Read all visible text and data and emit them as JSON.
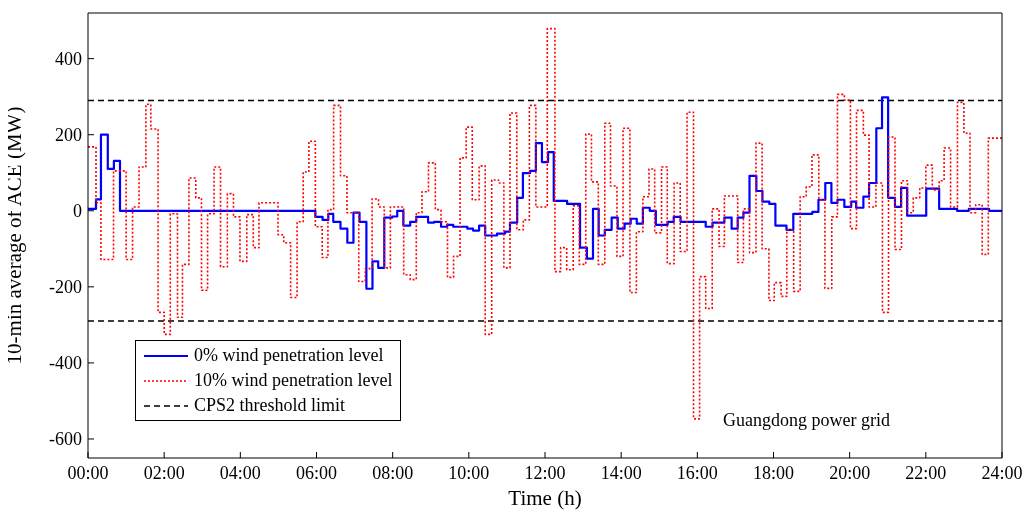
{
  "chart_data": {
    "type": "step",
    "xlabel": "Time (h)",
    "ylabel": "10-min average of ACE (MW)",
    "xlim": [
      0,
      24
    ],
    "xticks": [
      {
        "value": 0,
        "label": "00:00"
      },
      {
        "value": 2,
        "label": "02:00"
      },
      {
        "value": 4,
        "label": "04:00"
      },
      {
        "value": 6,
        "label": "06:00"
      },
      {
        "value": 8,
        "label": "08:00"
      },
      {
        "value": 10,
        "label": "10:00"
      },
      {
        "value": 12,
        "label": "12:00"
      },
      {
        "value": 14,
        "label": "14:00"
      },
      {
        "value": 16,
        "label": "16:00"
      },
      {
        "value": 18,
        "label": "18:00"
      },
      {
        "value": 20,
        "label": "20:00"
      },
      {
        "value": 22,
        "label": "22:00"
      },
      {
        "value": 24,
        "label": "24:00"
      }
    ],
    "ylim": [
      -650,
      520
    ],
    "yticks": [
      -600,
      -400,
      -200,
      0,
      200,
      400
    ],
    "grid": false,
    "legend": "bottom left",
    "marker": "none",
    "series": [
      {
        "name": "0% wind penetration level",
        "color": "#0000ff",
        "line_style": "solid",
        "x": [
          0,
          0.21,
          0.34,
          0.52,
          0.68,
          0.84,
          5.97,
          6.16,
          6.31,
          6.44,
          6.63,
          6.81,
          6.97,
          7.13,
          7.31,
          7.47,
          7.62,
          7.78,
          7.99,
          8.12,
          8.28,
          8.46,
          8.62,
          8.93,
          9.09,
          9.27,
          9.43,
          9.59,
          9.96,
          10.11,
          10.27,
          10.43,
          10.74,
          10.95,
          11.08,
          11.27,
          11.42,
          11.61,
          11.76,
          11.92,
          12.08,
          12.23,
          12.58,
          12.92,
          13.1,
          13.26,
          13.41,
          13.57,
          13.75,
          13.91,
          14.09,
          14.25,
          14.41,
          14.57,
          14.75,
          14.91,
          15.22,
          15.38,
          15.56,
          16.22,
          16.4,
          16.71,
          16.9,
          17.06,
          17.21,
          17.37,
          17.55,
          17.71,
          17.89,
          18.05,
          18.34,
          18.52,
          19.02,
          19.18,
          19.36,
          19.52,
          19.68,
          19.86,
          20.04,
          20.17,
          20.36,
          20.51,
          20.7,
          20.85,
          21.01,
          21.19,
          21.35,
          21.51,
          22.01,
          22.35,
          22.82,
          23.13,
          23.66,
          24
        ],
        "values": [
          5,
          30,
          200,
          110,
          131,
          0,
          -16,
          -24,
          -8,
          -29,
          -47,
          -84,
          -5,
          -29,
          -205,
          -133,
          -150,
          -18,
          -15,
          0,
          -39,
          -29,
          -16,
          -31,
          -29,
          -42,
          -37,
          -42,
          -47,
          -52,
          -39,
          -65,
          -60,
          -55,
          -31,
          34,
          99,
          105,
          178,
          128,
          154,
          26,
          18,
          -97,
          -126,
          5,
          -65,
          -50,
          -18,
          -47,
          -34,
          -21,
          -34,
          8,
          0,
          -37,
          -29,
          -16,
          -29,
          -42,
          -31,
          -18,
          -47,
          -18,
          -5,
          92,
          52,
          24,
          18,
          -39,
          -50,
          -8,
          -3,
          29,
          73,
          21,
          29,
          10,
          24,
          8,
          37,
          73,
          217,
          298,
          34,
          10,
          60,
          -13,
          58,
          5,
          0,
          5,
          0,
          0
        ]
      },
      {
        "name": "10% wind penetration level",
        "color": "#ff0000",
        "line_style": "dotted",
        "x": [
          0,
          0.21,
          0.34,
          0.67,
          1,
          1.17,
          1.34,
          1.52,
          1.65,
          1.84,
          2,
          2.16,
          2.35,
          2.48,
          2.65,
          2.83,
          2.98,
          3.14,
          3.31,
          3.48,
          3.66,
          3.82,
          3.99,
          4.17,
          4.34,
          4.49,
          4.99,
          5.14,
          5.32,
          5.49,
          5.65,
          5.8,
          5.97,
          6.15,
          6.3,
          6.45,
          6.63,
          6.8,
          7.11,
          7.28,
          7.46,
          7.63,
          7.78,
          7.94,
          8.29,
          8.46,
          8.62,
          8.77,
          8.94,
          9.12,
          9.27,
          9.44,
          9.6,
          9.77,
          9.93,
          10.09,
          10.27,
          10.43,
          10.6,
          10.78,
          10.92,
          11.08,
          11.26,
          11.43,
          11.59,
          11.76,
          12.06,
          12.26,
          12.41,
          12.57,
          12.74,
          12.9,
          13.07,
          13.22,
          13.4,
          13.57,
          13.72,
          13.89,
          14.05,
          14.23,
          14.4,
          14.57,
          14.73,
          14.88,
          15.06,
          15.21,
          15.39,
          15.55,
          15.73,
          15.9,
          16.06,
          16.22,
          16.39,
          16.57,
          16.71,
          17.06,
          17.21,
          17.37,
          17.54,
          17.7,
          17.88,
          18.02,
          18.2,
          18.35,
          18.53,
          18.7,
          18.86,
          19.01,
          19.19,
          19.35,
          19.53,
          19.68,
          19.86,
          20.02,
          20.18,
          20.36,
          20.51,
          20.69,
          20.86,
          21.02,
          21.19,
          21.36,
          21.52,
          21.67,
          21.84,
          22,
          22.17,
          22.35,
          22.48,
          22.65,
          22.83,
          23,
          23.16,
          23.31,
          23.48,
          23.64,
          24
        ],
        "values": [
          168,
          21,
          -128,
          105,
          -128,
          10,
          115,
          280,
          215,
          -267,
          -325,
          -8,
          -280,
          -141,
          86,
          34,
          -209,
          -8,
          115,
          -147,
          45,
          -16,
          -133,
          -10,
          -97,
          21,
          -63,
          -84,
          -228,
          -29,
          102,
          183,
          -42,
          -123,
          3,
          277,
          92,
          -5,
          -186,
          -152,
          31,
          10,
          -150,
          10,
          -168,
          -181,
          -5,
          50,
          126,
          3,
          -29,
          -175,
          -120,
          139,
          220,
          29,
          118,
          -325,
          81,
          73,
          -150,
          257,
          -50,
          -24,
          277,
          10,
          479,
          -160,
          -97,
          -155,
          13,
          -141,
          202,
          76,
          -141,
          230,
          65,
          -120,
          217,
          -215,
          -55,
          37,
          110,
          -58,
          115,
          -139,
          73,
          -107,
          259,
          -547,
          -173,
          -257,
          5,
          -94,
          39,
          -136,
          5,
          -110,
          178,
          -100,
          -236,
          -189,
          -225,
          -50,
          -212,
          37,
          63,
          147,
          29,
          -204,
          -16,
          306,
          291,
          -47,
          264,
          199,
          10,
          73,
          -267,
          194,
          -102,
          79,
          -5,
          34,
          60,
          120,
          55,
          79,
          165,
          10,
          285,
          204,
          -5,
          16,
          -115,
          191,
          191
        ]
      }
    ],
    "ref_lines": [
      {
        "axis": "y",
        "value": 290,
        "label": "CPS2 threshold limit",
        "color": "#000000",
        "line_style": "dashed"
      },
      {
        "axis": "y",
        "value": -290,
        "color": "#000000",
        "line_style": "dashed"
      }
    ],
    "annotations": [
      "Guangdong power grid"
    ]
  }
}
